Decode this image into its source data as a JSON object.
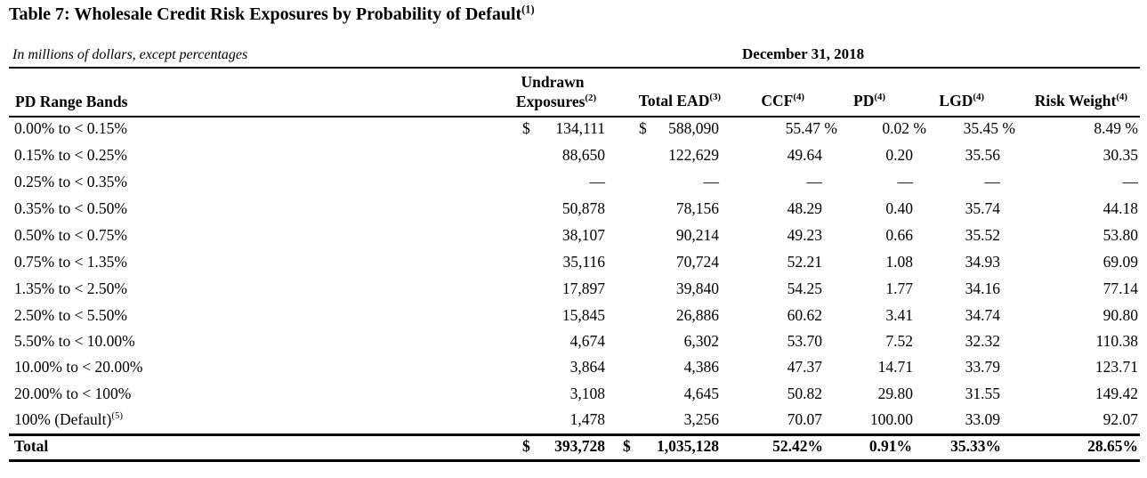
{
  "title": "Table 7: Wholesale Credit Risk Exposures by Probability of Default",
  "title_note": "(1)",
  "units": "In millions of dollars, except percentages",
  "date": "December 31, 2018",
  "headers": {
    "band": "PD Range Bands",
    "undrawn_l1": "Undrawn",
    "undrawn_l2": "Exposures",
    "undrawn_note": "(2)",
    "ead": "Total EAD",
    "ead_note": "(3)",
    "ccf": "CCF",
    "ccf_note": "(4)",
    "pd": "PD",
    "pd_note": "(4)",
    "lgd": "LGD",
    "lgd_note": "(4)",
    "rw": "Risk Weight",
    "rw_note": "(4)"
  },
  "rows": [
    {
      "band": "0.00% to < 0.15%",
      "undrawn": "134,111",
      "ead": "588,090",
      "ccf": "55.47",
      "pd": "0.02",
      "lgd": "35.45",
      "rw": "8.49",
      "pct": "%",
      "dollar": "$"
    },
    {
      "band": "0.15% to < 0.25%",
      "undrawn": "88,650",
      "ead": "122,629",
      "ccf": "49.64",
      "pd": "0.20",
      "lgd": "35.56",
      "rw": "30.35"
    },
    {
      "band": "0.25% to < 0.35%",
      "undrawn": "—",
      "ead": "—",
      "ccf": "—",
      "pd": "—",
      "lgd": "—",
      "rw": "—"
    },
    {
      "band": "0.35% to < 0.50%",
      "undrawn": "50,878",
      "ead": "78,156",
      "ccf": "48.29",
      "pd": "0.40",
      "lgd": "35.74",
      "rw": "44.18"
    },
    {
      "band": "0.50% to < 0.75%",
      "undrawn": "38,107",
      "ead": "90,214",
      "ccf": "49.23",
      "pd": "0.66",
      "lgd": "35.52",
      "rw": "53.80"
    },
    {
      "band": "0.75% to < 1.35%",
      "undrawn": "35,116",
      "ead": "70,724",
      "ccf": "52.21",
      "pd": "1.08",
      "lgd": "34.93",
      "rw": "69.09"
    },
    {
      "band": "1.35% to < 2.50%",
      "undrawn": "17,897",
      "ead": "39,840",
      "ccf": "54.25",
      "pd": "1.77",
      "lgd": "34.16",
      "rw": "77.14"
    },
    {
      "band": "2.50% to < 5.50%",
      "undrawn": "15,845",
      "ead": "26,886",
      "ccf": "60.62",
      "pd": "3.41",
      "lgd": "34.74",
      "rw": "90.80"
    },
    {
      "band": "5.50% to < 10.00%",
      "undrawn": "4,674",
      "ead": "6,302",
      "ccf": "53.70",
      "pd": "7.52",
      "lgd": "32.32",
      "rw": "110.38"
    },
    {
      "band": "10.00% to < 20.00%",
      "undrawn": "3,864",
      "ead": "4,386",
      "ccf": "47.37",
      "pd": "14.71",
      "lgd": "33.79",
      "rw": "123.71"
    },
    {
      "band": "20.00% to < 100%",
      "undrawn": "3,108",
      "ead": "4,645",
      "ccf": "50.82",
      "pd": "29.80",
      "lgd": "31.55",
      "rw": "149.42"
    },
    {
      "band": "100% (Default)",
      "band_note": "(5)",
      "undrawn": "1,478",
      "ead": "3,256",
      "ccf": "70.07",
      "pd": "100.00",
      "lgd": "33.09",
      "rw": "92.07"
    }
  ],
  "total": {
    "band": "Total",
    "dollar": "$",
    "undrawn": "393,728",
    "ead": "1,035,128",
    "ccf": "52.42%",
    "pd": "0.91%",
    "lgd": "35.33%",
    "rw": "28.65%"
  }
}
